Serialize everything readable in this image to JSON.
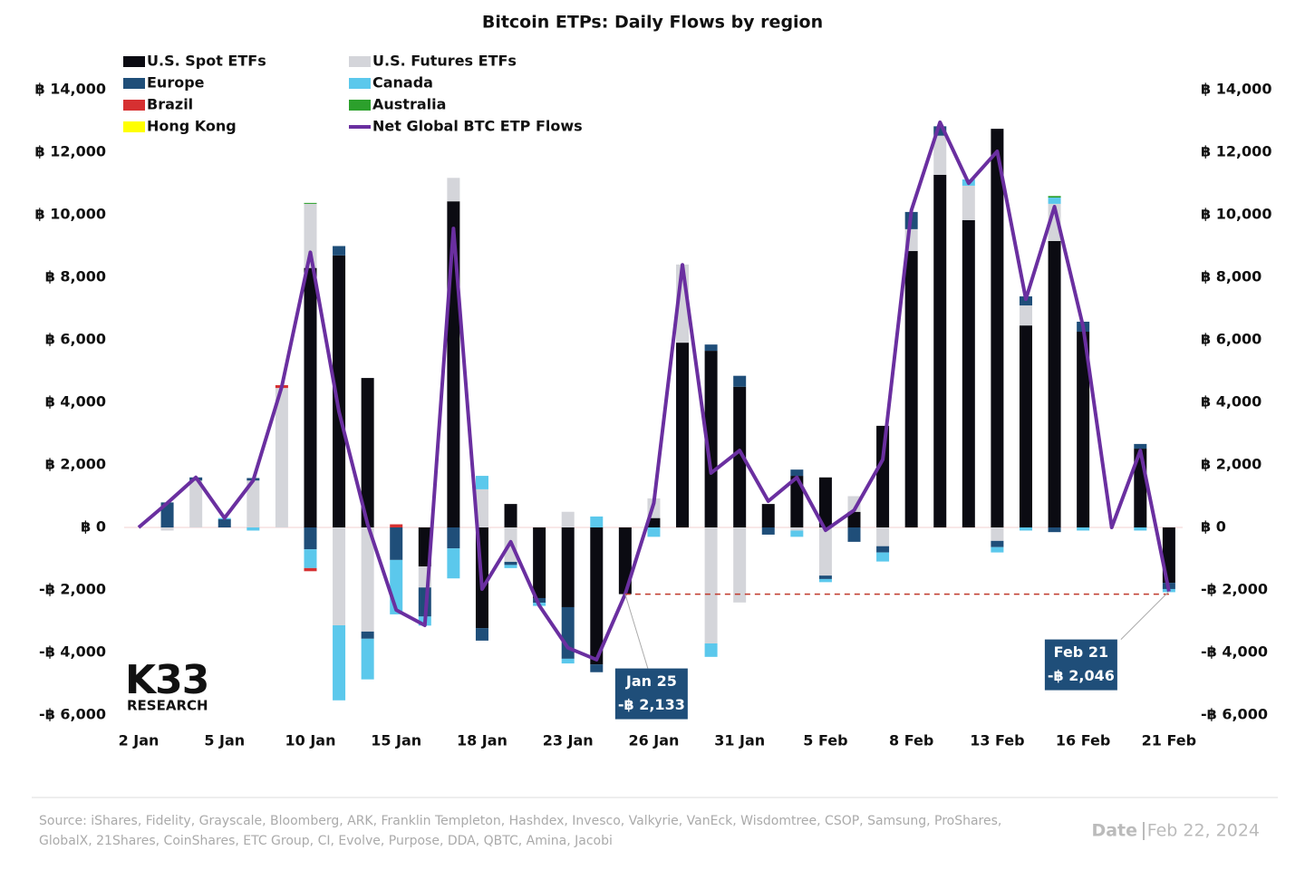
{
  "chart_data": {
    "type": "stacked_bar",
    "title": "Bitcoin ETPs: Daily Flows by region",
    "categories": [
      "2 Jan",
      null,
      null,
      "5 Jan",
      null,
      null,
      "10 Jan",
      null,
      null,
      "15 Jan",
      null,
      null,
      "18 Jan",
      null,
      null,
      "23 Jan",
      null,
      null,
      "26 Jan",
      null,
      null,
      "31 Jan",
      null,
      null,
      "5 Feb",
      null,
      null,
      "8 Feb",
      null,
      null,
      "13 Feb",
      null,
      null,
      "16 Feb",
      null,
      null,
      "21 Feb"
    ],
    "ylim": [
      -6000,
      14000
    ],
    "yticks": [
      {
        "value": -6000,
        "label": "-฿ 6,000"
      },
      {
        "value": -4000,
        "label": "-฿ 4,000"
      },
      {
        "value": -2000,
        "label": "-฿ 2,000"
      },
      {
        "value": 0,
        "label": "฿ 0"
      },
      {
        "value": 2000,
        "label": "฿ 2,000"
      },
      {
        "value": 4000,
        "label": "฿ 4,000"
      },
      {
        "value": 6000,
        "label": "฿ 6,000"
      },
      {
        "value": 8000,
        "label": "฿ 8,000"
      },
      {
        "value": 10000,
        "label": "฿ 10,000"
      },
      {
        "value": 12000,
        "label": "฿ 12,000"
      },
      {
        "value": 14000,
        "label": "฿ 14,000"
      }
    ],
    "y2lim": [
      -6000,
      14000
    ],
    "y2ticks": [
      {
        "value": -6000,
        "label": "-฿ 6,000"
      },
      {
        "value": -4000,
        "label": "-฿ 4,000"
      },
      {
        "value": -2000,
        "label": "-฿ 2,000"
      },
      {
        "value": 0,
        "label": "฿ 0"
      },
      {
        "value": 2000,
        "label": "฿ 2,000"
      },
      {
        "value": 4000,
        "label": "฿ 4,000"
      },
      {
        "value": 6000,
        "label": "฿ 6,000"
      },
      {
        "value": 8000,
        "label": "฿ 8,000"
      },
      {
        "value": 10000,
        "label": "฿ 10,000"
      },
      {
        "value": 12000,
        "label": "฿ 12,000"
      },
      {
        "value": 14000,
        "label": "฿ 14,000"
      }
    ],
    "series": [
      {
        "name": "U.S. Spot ETFs",
        "color": "#0b0b12",
        "values": [
          0,
          0,
          0,
          0,
          0,
          0,
          8300,
          8700,
          4780,
          0,
          -1250,
          10430,
          -3220,
          750,
          -2260,
          -2550,
          -4380,
          -2133,
          300,
          5910,
          5650,
          4500,
          750,
          1650,
          1600,
          500,
          3250,
          8840,
          11280,
          9830,
          12750,
          6460,
          9160,
          6260,
          0,
          2520,
          -1770
        ]
      },
      {
        "name": "U.S. Futures ETFs",
        "color": "#d4d5da",
        "values": [
          0,
          -100,
          1500,
          0,
          1500,
          4460,
          2050,
          -3130,
          -3330,
          0,
          -670,
          750,
          1220,
          -1100,
          0,
          500,
          0,
          0,
          630,
          2500,
          -3710,
          -2400,
          0,
          -100,
          -1540,
          500,
          -600,
          700,
          1250,
          1100,
          -430,
          640,
          1190,
          0,
          0,
          0,
          0
        ]
      },
      {
        "name": "Europe",
        "color": "#1f4e79",
        "values": [
          0,
          800,
          100,
          260,
          80,
          0,
          -700,
          300,
          -230,
          -1040,
          -930,
          -670,
          -400,
          -100,
          -150,
          -1650,
          -250,
          0,
          0,
          0,
          200,
          350,
          -230,
          200,
          -110,
          -460,
          -200,
          550,
          300,
          0,
          -200,
          290,
          -150,
          320,
          0,
          150,
          -200
        ]
      },
      {
        "name": "Canada",
        "color": "#5bc8ec",
        "values": [
          0,
          0,
          0,
          40,
          -100,
          0,
          -600,
          -2400,
          -1300,
          -1740,
          -290,
          -960,
          430,
          -100,
          -100,
          -150,
          350,
          0,
          -300,
          0,
          -430,
          0,
          0,
          -200,
          -100,
          0,
          -290,
          0,
          0,
          200,
          -170,
          -100,
          200,
          -100,
          0,
          -100,
          -100
        ]
      },
      {
        "name": "Brazil",
        "color": "#d63031",
        "values": [
          0,
          0,
          0,
          0,
          0,
          90,
          -100,
          0,
          0,
          100,
          0,
          0,
          0,
          0,
          0,
          0,
          0,
          0,
          0,
          0,
          0,
          0,
          0,
          0,
          0,
          0,
          0,
          0,
          0,
          0,
          0,
          0,
          0,
          0,
          0,
          0,
          0
        ]
      },
      {
        "name": "Australia",
        "color": "#2ca02c",
        "values": [
          0,
          0,
          0,
          0,
          0,
          0,
          30,
          0,
          0,
          0,
          0,
          0,
          0,
          0,
          0,
          0,
          0,
          0,
          0,
          0,
          0,
          0,
          0,
          0,
          0,
          0,
          0,
          0,
          0,
          0,
          0,
          0,
          50,
          0,
          0,
          0,
          0
        ]
      },
      {
        "name": "Hong Kong",
        "color": "#ffff00",
        "values": [
          0,
          0,
          0,
          0,
          0,
          0,
          0,
          0,
          0,
          0,
          0,
          0,
          0,
          0,
          0,
          0,
          0,
          0,
          0,
          0,
          0,
          0,
          0,
          0,
          0,
          0,
          0,
          0,
          0,
          0,
          0,
          0,
          0,
          0,
          0,
          0,
          0
        ]
      },
      {
        "name": "Net Global BTC ETP Flows",
        "color": "#6a2fa0",
        "type": "line",
        "values": [
          0,
          780,
          1600,
          300,
          1500,
          4500,
          8800,
          3700,
          100,
          -2640,
          -3130,
          9560,
          -1970,
          -460,
          -2500,
          -3850,
          -4230,
          -2133,
          780,
          8400,
          1740,
          2460,
          840,
          1600,
          -90,
          550,
          2170,
          10140,
          12960,
          11010,
          12030,
          7300,
          10260,
          6430,
          0,
          2460,
          -2046
        ]
      }
    ],
    "annotations": [
      {
        "title": "Jan 25",
        "text": "-฿ 2,133",
        "value": -2133
      },
      {
        "title": "Feb 21",
        "text": "-฿ 2,046",
        "value": -2046
      }
    ],
    "logo": {
      "name": "K33",
      "sub": "RESEARCH"
    }
  },
  "footer": {
    "source": [
      "Source:  iShares, Fidelity, Grayscale, Bloomberg, ARK, Franklin Templeton, Hashdex, Invesco, Valkyrie, VanEck, Wisdomtree, CSOP, Samsung, ProShares,",
      "GlobalX, 21Shares, CoinShares, ETC Group, CI, Evolve, Purpose, DDA, QBTC, Amina, Jacobi"
    ],
    "date_label": "Date",
    "date": "Feb 22, 2024"
  }
}
